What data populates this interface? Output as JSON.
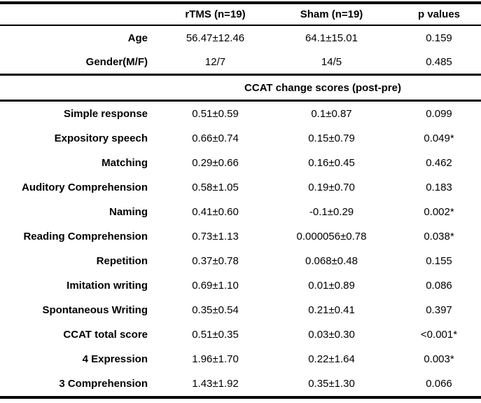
{
  "table": {
    "column_headers": {
      "label": "",
      "rtms": "rTMS (n=19)",
      "sham": "Sham (n=19)",
      "p": "p values"
    },
    "demographic_rows": [
      {
        "label": "Age",
        "rtms": "56.47±12.46",
        "sham": "64.1±15.01",
        "p": "0.159"
      },
      {
        "label": "Gender(M/F)",
        "rtms": "12/7",
        "sham": "14/5",
        "p": "0.485"
      }
    ],
    "section_header": "CCAT change scores (post-pre)",
    "data_rows": [
      {
        "label": "Simple response",
        "rtms": "0.51±0.59",
        "sham": "0.1±0.87",
        "p": "0.099"
      },
      {
        "label": "Expository speech",
        "rtms": "0.66±0.74",
        "sham": "0.15±0.79",
        "p": "0.049*"
      },
      {
        "label": "Matching",
        "rtms": "0.29±0.66",
        "sham": "0.16±0.45",
        "p": "0.462"
      },
      {
        "label": "Auditory Comprehension",
        "rtms": "0.58±1.05",
        "sham": "0.19±0.70",
        "p": "0.183"
      },
      {
        "label": "Naming",
        "rtms": "0.41±0.60",
        "sham": "-0.1±0.29",
        "p": "0.002*"
      },
      {
        "label": "Reading Comprehension",
        "rtms": "0.73±1.13",
        "sham": "0.000056±0.78",
        "p": "0.038*"
      },
      {
        "label": "Repetition",
        "rtms": "0.37±0.78",
        "sham": "0.068±0.48",
        "p": "0.155"
      },
      {
        "label": "Imitation writing",
        "rtms": "0.69±1.10",
        "sham": "0.01±0.89",
        "p": "0.086"
      },
      {
        "label": "Spontaneous Writing",
        "rtms": "0.35±0.54",
        "sham": "0.21±0.41",
        "p": "0.397"
      },
      {
        "label": "CCAT total score",
        "rtms": "0.51±0.35",
        "sham": "0.03±0.30",
        "p": "<0.001*"
      },
      {
        "label": "4 Expression",
        "rtms": "1.96±1.70",
        "sham": "0.22±1.64",
        "p": "0.003*"
      },
      {
        "label": "3 Comprehension",
        "rtms": "1.43±1.92",
        "sham": "0.35±1.30",
        "p": "0.066"
      }
    ]
  }
}
